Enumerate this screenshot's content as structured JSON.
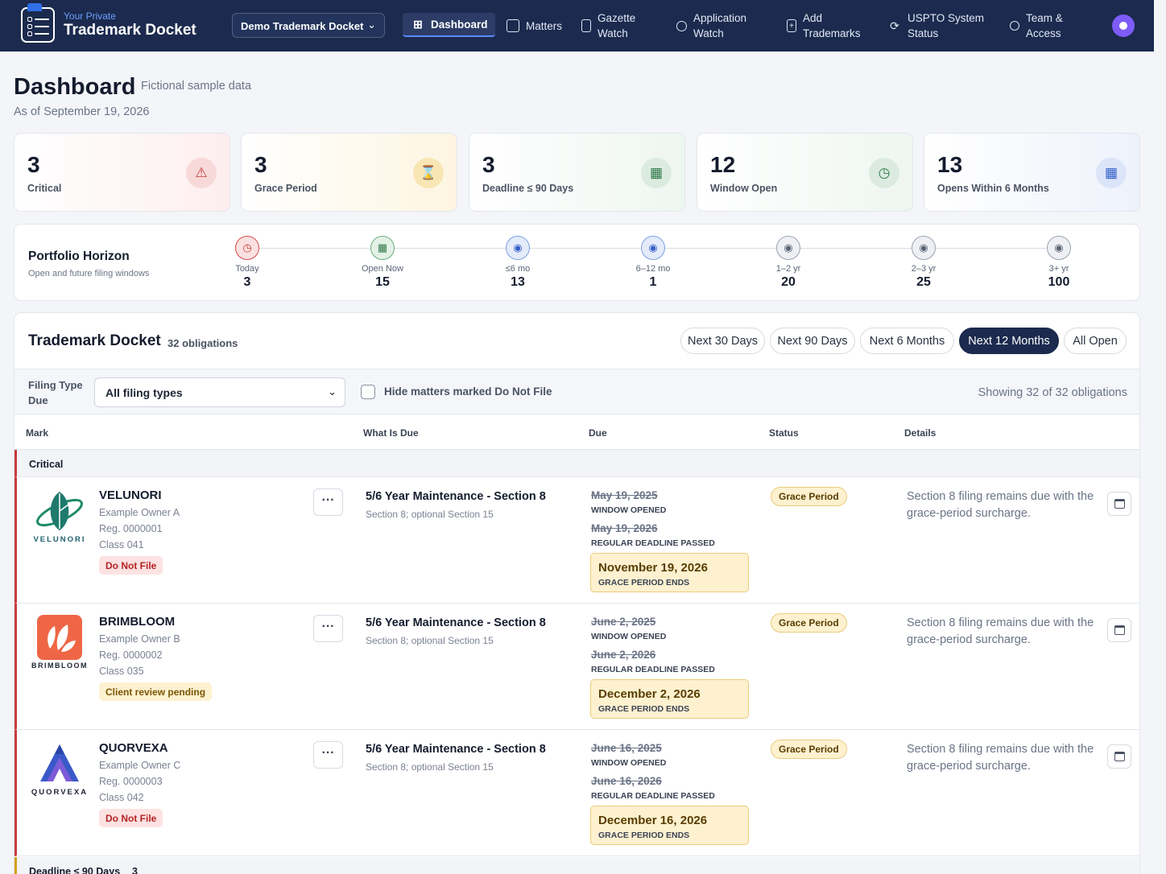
{
  "brand": {
    "sub": "Your Private",
    "title": "Trademark Docket"
  },
  "docket_selector": {
    "value": "Demo Trademark Docket"
  },
  "nav": {
    "dashboard": "Dashboard",
    "matters": "Matters",
    "gazette_l1": "Gazette",
    "gazette_l2": "Watch",
    "application_l1": "Application",
    "application_l2": "Watch",
    "add_l1": "Add",
    "add_l2": "Trademarks",
    "uspto_l1": "USPTO System",
    "uspto_l2": "Status",
    "team_l1": "Team &",
    "team_l2": "Access"
  },
  "header": {
    "title": "Dashboard",
    "note": "Fictional sample data",
    "as_of": "As of September 19, 2026"
  },
  "stats": [
    {
      "value": "3",
      "label": "Critical",
      "icon": "warning-triangle-icon"
    },
    {
      "value": "3",
      "label": "Grace Period",
      "icon": "hourglass-icon"
    },
    {
      "value": "3",
      "label": "Deadline ≤ 90 Days",
      "icon": "calendar-icon"
    },
    {
      "value": "12",
      "label": "Window Open",
      "icon": "calendar-clock-icon"
    },
    {
      "value": "13",
      "label": "Opens Within 6 Months",
      "icon": "calendar-grid-icon"
    }
  ],
  "horizon": {
    "title": "Portfolio Horizon",
    "subtitle": "Open and future filing windows",
    "steps": [
      {
        "label": "Today",
        "value": "3"
      },
      {
        "label": "Open Now",
        "value": "15"
      },
      {
        "label": "≤6 mo",
        "value": "13"
      },
      {
        "label": "6–12 mo",
        "value": "1"
      },
      {
        "label": "1–2 yr",
        "value": "20"
      },
      {
        "label": "2–3 yr",
        "value": "25"
      },
      {
        "label": "3+ yr",
        "value": "100"
      }
    ]
  },
  "docket": {
    "title": "Trademark Docket",
    "count": "32 obligations",
    "ranges": [
      "Next 30 Days",
      "Next 90 Days",
      "Next 6 Months",
      "Next 12 Months",
      "All Open"
    ],
    "active_range": "Next 12 Months",
    "filter_label": "Filing Type Due",
    "filter_value": "All filing types",
    "hide_label": "Hide matters marked Do Not File",
    "showing": "Showing 32 of 32 obligations",
    "columns": [
      "Mark",
      "What Is Due",
      "Due",
      "Status",
      "Details"
    ],
    "groups": [
      {
        "name": "Critical"
      },
      {
        "name": "Deadline ≤ 90 Days",
        "count": "3"
      }
    ],
    "rows": [
      {
        "mark": "VELUNORI",
        "logo_word": "VELUNORI",
        "owner": "Example Owner A",
        "reg": "Reg. 0000001",
        "class": "Class 041",
        "chip": "Do Not File",
        "what": "5/6 Year Maintenance - Section 8",
        "what_sub": "Section 8; optional Section 15",
        "date1": "May 19, 2025",
        "cap1": "WINDOW OPENED",
        "date2": "May 19, 2026",
        "cap2": "REGULAR DEADLINE PASSED",
        "grace_date": "November 19, 2026",
        "grace_cap": "GRACE PERIOD ENDS",
        "status": "Grace Period",
        "detail": "Section 8 filing remains due with the grace-period surcharge."
      },
      {
        "mark": "BRIMBLOOM",
        "logo_word": "BRIMBLOOM",
        "owner": "Example Owner B",
        "reg": "Reg. 0000002",
        "class": "Class 035",
        "chip": "Client review pending",
        "what": "5/6 Year Maintenance - Section 8",
        "what_sub": "Section 8; optional Section 15",
        "date1": "June 2, 2025",
        "cap1": "WINDOW OPENED",
        "date2": "June 2, 2026",
        "cap2": "REGULAR DEADLINE PASSED",
        "grace_date": "December 2, 2026",
        "grace_cap": "GRACE PERIOD ENDS",
        "status": "Grace Period",
        "detail": "Section 8 filing remains due with the grace-period surcharge."
      },
      {
        "mark": "QUORVEXA",
        "logo_word": "QUORVEXA",
        "owner": "Example Owner C",
        "reg": "Reg. 0000003",
        "class": "Class 042",
        "chip": "Do Not File",
        "what": "5/6 Year Maintenance - Section 8",
        "what_sub": "Section 8; optional Section 15",
        "date1": "June 16, 2025",
        "cap1": "WINDOW OPENED",
        "date2": "June 16, 2026",
        "cap2": "REGULAR DEADLINE PASSED",
        "grace_date": "December 16, 2026",
        "grace_cap": "GRACE PERIOD ENDS",
        "status": "Grace Period",
        "detail": "Section 8 filing remains due with the grace-period surcharge."
      }
    ]
  },
  "colors": {
    "navy": "#1b2a4e",
    "critical": "#c53a3a",
    "grace": "#fdf1d0",
    "accent": "#7d5cf7"
  }
}
